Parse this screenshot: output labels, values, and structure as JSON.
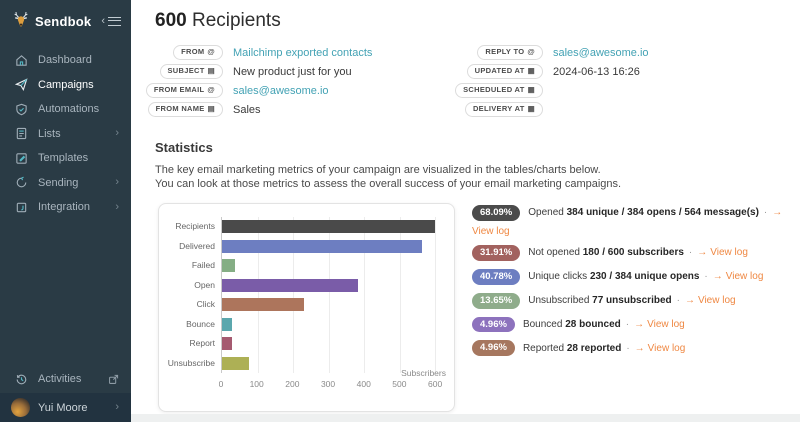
{
  "sidebar": {
    "brand": "Sendbok",
    "items": [
      {
        "label": "Dashboard",
        "icon": "home-icon",
        "active": false,
        "has_submenu": false
      },
      {
        "label": "Campaigns",
        "icon": "paper-plane-icon",
        "active": true,
        "has_submenu": false
      },
      {
        "label": "Automations",
        "icon": "shield-check-icon",
        "active": false,
        "has_submenu": false
      },
      {
        "label": "Lists",
        "icon": "list-file-icon",
        "active": false,
        "has_submenu": true
      },
      {
        "label": "Templates",
        "icon": "template-edit-icon",
        "active": false,
        "has_submenu": false
      },
      {
        "label": "Sending",
        "icon": "sync-icon",
        "active": false,
        "has_submenu": true
      },
      {
        "label": "Integration",
        "icon": "integration-icon",
        "active": false,
        "has_submenu": true
      }
    ],
    "activities": {
      "label": "Activities",
      "icon": "history-clock-icon"
    },
    "user": {
      "name": "Yui Moore"
    }
  },
  "header": {
    "count": "600",
    "title": "Recipients"
  },
  "details": {
    "left": [
      {
        "label": "FROM",
        "icon": "at-icon",
        "value": "Mailchimp exported contacts",
        "is_link": true
      },
      {
        "label": "SUBJECT",
        "icon": "text-icon",
        "value": "New product just for you",
        "is_link": false
      },
      {
        "label": "FROM EMAIL",
        "icon": "at-icon",
        "value": "sales@awesome.io",
        "is_link": true
      },
      {
        "label": "FROM NAME",
        "icon": "text-icon",
        "value": "Sales",
        "is_link": false
      }
    ],
    "right": [
      {
        "label": "REPLY TO",
        "icon": "at-icon",
        "value": "sales@awesome.io",
        "is_link": true
      },
      {
        "label": "UPDATED AT",
        "icon": "calendar-icon",
        "value": "2024-06-13 16:26",
        "is_link": false
      },
      {
        "label": "SCHEDULED AT",
        "icon": "calendar-icon",
        "value": "",
        "is_link": false
      },
      {
        "label": "DELIVERY AT",
        "icon": "calendar-icon",
        "value": "",
        "is_link": false
      }
    ]
  },
  "statistics": {
    "heading": "Statistics",
    "description_line1": "The key email marketing metrics of your campaign are visualized in the tables/charts below.",
    "description_line2": "You can look at those metrics to assess the overall success of your email marketing campaigns.",
    "rows": [
      {
        "pct": "68.09%",
        "color": "#4b4b4b",
        "prefix": "Opened ",
        "bold": "384 unique / 384 opens / 564 message(s)",
        "link": "View log"
      },
      {
        "pct": "31.91%",
        "color": "#a2625f",
        "prefix": "Not opened ",
        "bold": "180 / 600 subscribers",
        "link": "View log"
      },
      {
        "pct": "40.78%",
        "color": "#6d7ec1",
        "prefix": "Unique clicks ",
        "bold": "230 / 384 unique opens",
        "link": "View log"
      },
      {
        "pct": "13.65%",
        "color": "#8fac8b",
        "prefix": "Unsubscribed ",
        "bold": "77 unsubscribed",
        "link": "View log"
      },
      {
        "pct": "4.96%",
        "color": "#8d72bd",
        "prefix": "Bounced ",
        "bold": "28 bounced",
        "link": "View log"
      },
      {
        "pct": "4.96%",
        "color": "#a6775f",
        "prefix": "Reported ",
        "bold": "28 reported",
        "link": "View log"
      }
    ]
  },
  "chart_data": {
    "type": "bar",
    "orientation": "horizontal",
    "categories": [
      "Recipients",
      "Delivered",
      "Failed",
      "Open",
      "Click",
      "Bounce",
      "Report",
      "Unsubscribe"
    ],
    "values": [
      600,
      564,
      36,
      384,
      230,
      28,
      28,
      77
    ],
    "colors": [
      "#4a4a4a",
      "#6d7ec1",
      "#85ae85",
      "#7a5ca8",
      "#ad755c",
      "#5ba7ad",
      "#a55a70",
      "#adb055"
    ],
    "xlabel": "Subscribers",
    "xticks": [
      0,
      100,
      200,
      300,
      400,
      500,
      600
    ],
    "xlim": [
      0,
      625
    ],
    "grid": true,
    "legend": false
  },
  "colors": {
    "accent_teal": "#43a2b4",
    "accent_orange": "#ef8843",
    "sidebar_bg": "#2a3b45"
  }
}
